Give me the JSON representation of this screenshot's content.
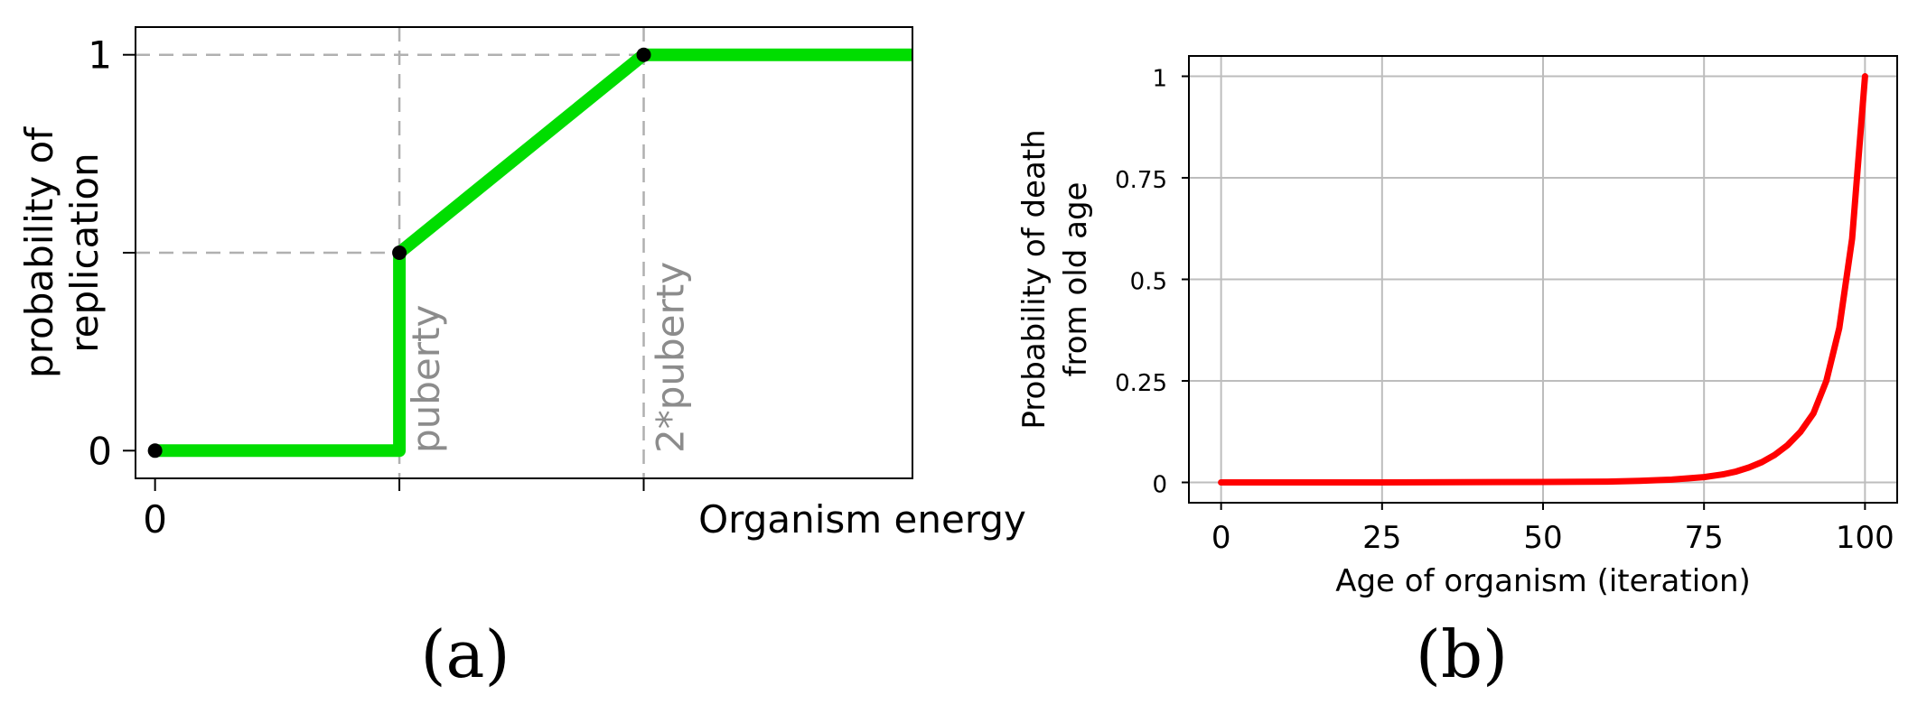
{
  "chart_data": [
    {
      "panel_label": "(a)",
      "type": "line",
      "xlabel": "Organism energy",
      "ylabel": [
        "probability of",
        "replication"
      ],
      "x_ticks": [
        {
          "value": 0,
          "label": "0"
        },
        {
          "value": 1,
          "label": ""
        },
        {
          "value": 2,
          "label": ""
        }
      ],
      "y_ticks": [
        {
          "value": 0,
          "label": "0"
        },
        {
          "value": 0.5,
          "label": ""
        },
        {
          "value": 1,
          "label": "1"
        }
      ],
      "xlim": [
        -0.08,
        3.1
      ],
      "ylim": [
        -0.07,
        1.07
      ],
      "grid": false,
      "line_color": "#00dd00",
      "series": [
        {
          "x": [
            0,
            1,
            1,
            2,
            3.1
          ],
          "y": [
            0,
            0,
            0.5,
            1,
            1
          ]
        }
      ],
      "points": [
        {
          "x": 0,
          "y": 0
        },
        {
          "x": 1,
          "y": 0.5
        },
        {
          "x": 2,
          "y": 1
        }
      ],
      "reference_lines": [
        {
          "orientation": "vertical",
          "value": 1,
          "label": "puberty"
        },
        {
          "orientation": "vertical",
          "value": 2,
          "label": "2*puberty"
        },
        {
          "orientation": "horizontal",
          "value": 0.5
        },
        {
          "orientation": "horizontal",
          "value": 1
        }
      ]
    },
    {
      "panel_label": "(b)",
      "type": "line",
      "xlabel": "Age of organism (iteration)",
      "ylabel": [
        "Probability of death",
        "from old age"
      ],
      "x_ticks": [
        {
          "value": 0,
          "label": "0"
        },
        {
          "value": 25,
          "label": "25"
        },
        {
          "value": 50,
          "label": "50"
        },
        {
          "value": 75,
          "label": "75"
        },
        {
          "value": 100,
          "label": "100"
        }
      ],
      "y_ticks": [
        {
          "value": 0,
          "label": "0"
        },
        {
          "value": 0.25,
          "label": "0.25"
        },
        {
          "value": 0.5,
          "label": "0.5"
        },
        {
          "value": 0.75,
          "label": "0.75"
        },
        {
          "value": 1,
          "label": "1"
        }
      ],
      "xlim": [
        -5,
        105
      ],
      "ylim": [
        -0.05,
        1.05
      ],
      "grid": true,
      "line_color": "#ff0000",
      "series": [
        {
          "x": [
            0,
            25,
            50,
            60,
            65,
            70,
            75,
            78,
            80,
            82,
            84,
            86,
            88,
            90,
            92,
            94,
            96,
            98,
            100
          ],
          "y": [
            0,
            0,
            0.001,
            0.002,
            0.004,
            0.007,
            0.013,
            0.02,
            0.027,
            0.037,
            0.05,
            0.068,
            0.092,
            0.125,
            0.17,
            0.25,
            0.38,
            0.6,
            1.0
          ]
        }
      ]
    }
  ]
}
